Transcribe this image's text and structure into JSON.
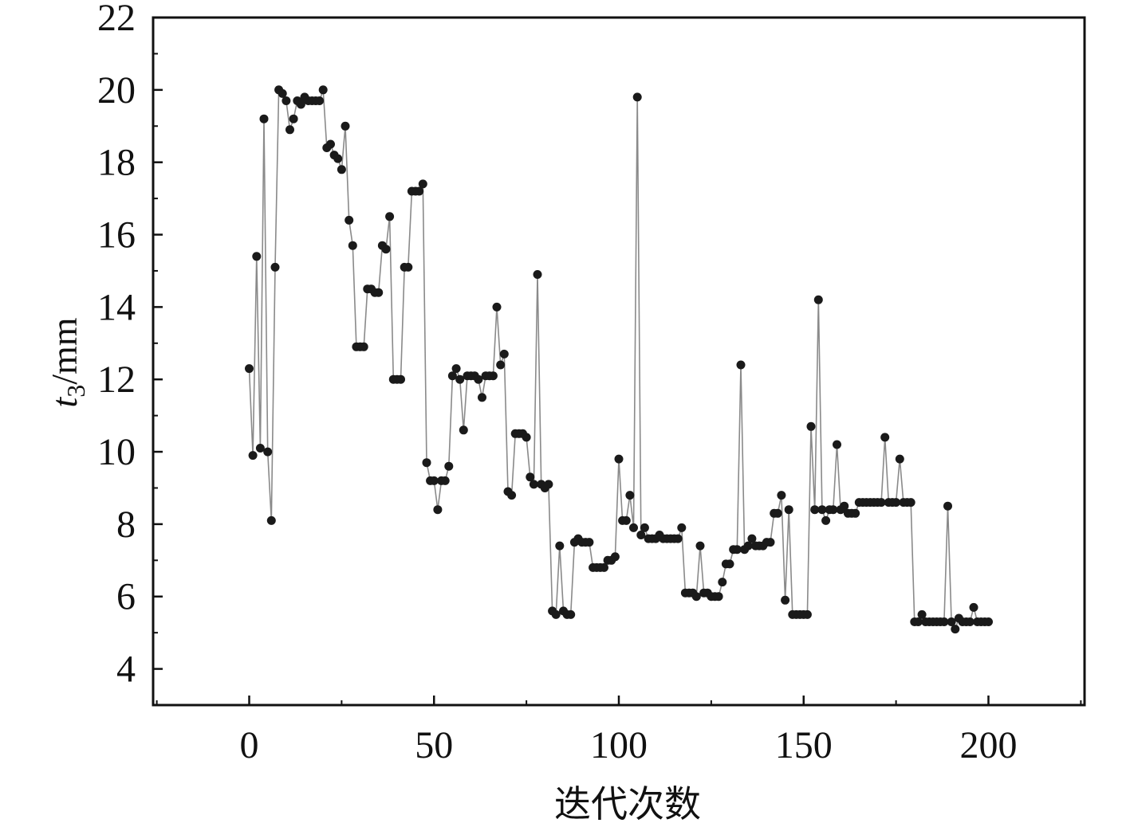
{
  "chart_data": {
    "type": "line",
    "title": "",
    "xlabel": "迭代次数",
    "ylabel": {
      "var": "t",
      "sub": "3",
      "unit": "/mm"
    },
    "xlim": [
      -26,
      226
    ],
    "ylim": [
      3,
      22
    ],
    "xticks": [
      0,
      50,
      100,
      150,
      200
    ],
    "xtick_labels": [
      "0",
      "50",
      "100",
      "150",
      "200"
    ],
    "yticks": [
      4,
      6,
      8,
      10,
      12,
      14,
      16,
      18,
      20,
      22
    ],
    "ytick_labels": [
      "4",
      "6",
      "8",
      "10",
      "12",
      "14",
      "16",
      "18",
      "20",
      "22"
    ],
    "grid": false,
    "colors": {
      "line": "#8a8a8a",
      "marker": "#1a1a1a",
      "axis": "#111111"
    },
    "series": [
      {
        "x": [
          0,
          1,
          2,
          3,
          4,
          5,
          6,
          7,
          8,
          9,
          10,
          11,
          12,
          13,
          14,
          15,
          16,
          17,
          18,
          19,
          20,
          21,
          22,
          23,
          24,
          25,
          26,
          27,
          28,
          29,
          30,
          31,
          32,
          33,
          34,
          35,
          36,
          37,
          38,
          39,
          40,
          41,
          42,
          43,
          44,
          45,
          46,
          47,
          48,
          49,
          50,
          51,
          52,
          53,
          54,
          55,
          56,
          57,
          58,
          59,
          60,
          61,
          62,
          63,
          64,
          65,
          66,
          67,
          68,
          69,
          70,
          71,
          72,
          73,
          74,
          75,
          76,
          77,
          78,
          79,
          80,
          81,
          82,
          83,
          84,
          85,
          86,
          87,
          88,
          89,
          90,
          91,
          92,
          93,
          94,
          95,
          96,
          97,
          98,
          99,
          100,
          101,
          102,
          103,
          104,
          105,
          106,
          107,
          108,
          109,
          110,
          111,
          112,
          113,
          114,
          115,
          116,
          117,
          118,
          119,
          120,
          121,
          122,
          123,
          124,
          125,
          126,
          127,
          128,
          129,
          130,
          131,
          132,
          133,
          134,
          135,
          136,
          137,
          138,
          139,
          140,
          141,
          142,
          143,
          144,
          145,
          146,
          147,
          148,
          149,
          150,
          151,
          152,
          153,
          154,
          155,
          156,
          157,
          158,
          159,
          160,
          161,
          162,
          163,
          164,
          165,
          166,
          167,
          168,
          169,
          170,
          171,
          172,
          173,
          174,
          175,
          176,
          177,
          178,
          179,
          180,
          181,
          182,
          183,
          184,
          185,
          186,
          187,
          188,
          189,
          190,
          191,
          192,
          193,
          194,
          195,
          196,
          197,
          198,
          199,
          200
        ],
        "y": [
          12.3,
          9.9,
          15.4,
          10.1,
          19.2,
          10.0,
          8.1,
          15.1,
          20.0,
          19.9,
          19.7,
          18.9,
          19.2,
          19.7,
          19.6,
          19.8,
          19.7,
          19.7,
          19.7,
          19.7,
          20.0,
          18.4,
          18.5,
          18.2,
          18.1,
          17.8,
          19.0,
          16.4,
          15.7,
          12.9,
          12.9,
          12.9,
          14.5,
          14.5,
          14.4,
          14.4,
          15.7,
          15.6,
          16.5,
          12.0,
          12.0,
          12.0,
          15.1,
          15.1,
          17.2,
          17.2,
          17.2,
          17.4,
          9.7,
          9.2,
          9.2,
          8.4,
          9.2,
          9.2,
          9.6,
          12.1,
          12.3,
          12.0,
          10.6,
          12.1,
          12.1,
          12.1,
          12.0,
          11.5,
          12.1,
          12.1,
          12.1,
          14.0,
          12.4,
          12.7,
          8.9,
          8.8,
          10.5,
          10.5,
          10.5,
          10.4,
          9.3,
          9.1,
          14.9,
          9.1,
          9.0,
          9.1,
          5.6,
          5.5,
          7.4,
          5.6,
          5.5,
          5.5,
          7.5,
          7.6,
          7.5,
          7.5,
          7.5,
          6.8,
          6.8,
          6.8,
          6.8,
          7.0,
          7.0,
          7.1,
          9.8,
          8.1,
          8.1,
          8.8,
          7.9,
          19.8,
          7.7,
          7.9,
          7.6,
          7.6,
          7.6,
          7.7,
          7.6,
          7.6,
          7.6,
          7.6,
          7.6,
          7.9,
          6.1,
          6.1,
          6.1,
          6.0,
          7.4,
          6.1,
          6.1,
          6.0,
          6.0,
          6.0,
          6.4,
          6.9,
          6.9,
          7.3,
          7.3,
          12.4,
          7.3,
          7.4,
          7.6,
          7.4,
          7.4,
          7.4,
          7.5,
          7.5,
          8.3,
          8.3,
          8.8,
          5.9,
          8.4,
          5.5,
          5.5,
          5.5,
          5.5,
          5.5,
          10.7,
          8.4,
          14.2,
          8.4,
          8.1,
          8.4,
          8.4,
          10.2,
          8.4,
          8.5,
          8.3,
          8.3,
          8.3,
          8.6,
          8.6,
          8.6,
          8.6,
          8.6,
          8.6,
          8.6,
          10.4,
          8.6,
          8.6,
          8.6,
          9.8,
          8.6,
          8.6,
          8.6,
          5.3,
          5.3,
          5.5,
          5.3,
          5.3,
          5.3,
          5.3,
          5.3,
          5.3,
          8.5,
          5.3,
          5.1,
          5.4,
          5.3,
          5.3,
          5.3,
          5.7,
          5.3,
          5.3,
          5.3,
          5.3
        ]
      }
    ]
  }
}
